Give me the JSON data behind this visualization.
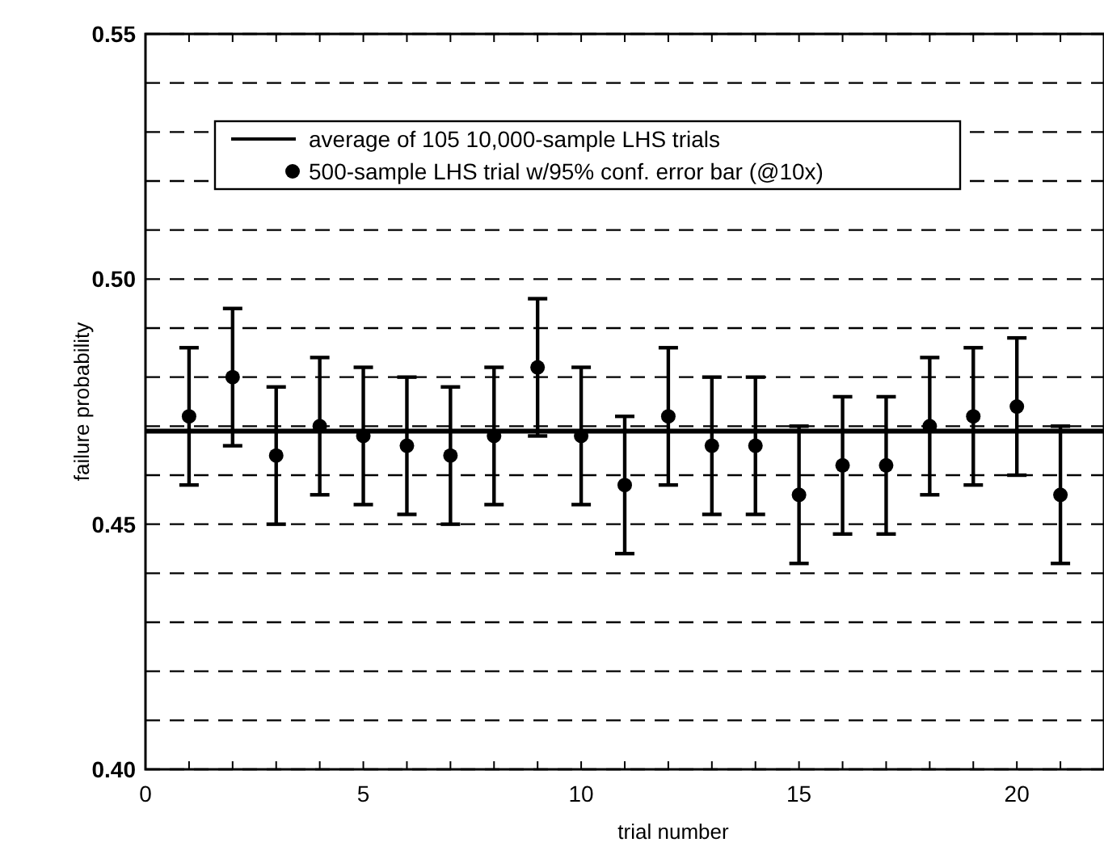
{
  "chart_data": {
    "type": "scatter",
    "xlabel": "trial number",
    "ylabel": "failure probability",
    "xlim": [
      0,
      22
    ],
    "ylim": [
      0.4,
      0.55
    ],
    "xticks": [
      0,
      {
        "value": 1,
        "label": null
      },
      {
        "value": 2,
        "label": null
      },
      {
        "value": 3,
        "label": null
      },
      {
        "value": 4,
        "label": null
      },
      5,
      {
        "value": 6,
        "label": null
      },
      {
        "value": 7,
        "label": null
      },
      {
        "value": 8,
        "label": null
      },
      {
        "value": 9,
        "label": null
      },
      10,
      {
        "value": 11,
        "label": null
      },
      {
        "value": 12,
        "label": null
      },
      {
        "value": 13,
        "label": null
      },
      {
        "value": 14,
        "label": null
      },
      15,
      {
        "value": 16,
        "label": null
      },
      {
        "value": 17,
        "label": null
      },
      {
        "value": 18,
        "label": null
      },
      {
        "value": 19,
        "label": null
      },
      20,
      {
        "value": 21,
        "label": null
      }
    ],
    "yticks": [
      {
        "value": 0.4,
        "label": "0.40"
      },
      {
        "value": 0.41,
        "label": null
      },
      {
        "value": 0.42,
        "label": null
      },
      {
        "value": 0.43,
        "label": null
      },
      {
        "value": 0.44,
        "label": null
      },
      0.45,
      {
        "value": 0.46,
        "label": null
      },
      {
        "value": 0.47,
        "label": null
      },
      {
        "value": 0.48,
        "label": null
      },
      {
        "value": 0.49,
        "label": null
      },
      {
        "value": 0.5,
        "label": "0.50"
      },
      {
        "value": 0.51,
        "label": null
      },
      {
        "value": 0.52,
        "label": null
      },
      {
        "value": 0.53,
        "label": null
      },
      {
        "value": 0.54,
        "label": null
      },
      0.55
    ],
    "grid": "y",
    "legend": "top left",
    "series": [
      {
        "type": "line",
        "name": "average of 105 10,000-sample LHS trials",
        "color": "#000000",
        "line_style": "solid",
        "marker": "none",
        "x": [
          0,
          22
        ],
        "values": [
          0.469,
          0.469
        ]
      },
      {
        "name": "500-sample LHS trial w/95% conf. error bar (@10x)",
        "color": "#000000",
        "marker": "circle",
        "x": [
          1,
          2,
          3,
          4,
          5,
          6,
          7,
          8,
          9,
          10,
          11,
          12,
          13,
          14,
          15,
          16,
          17,
          18,
          19,
          20,
          21
        ],
        "values": [
          0.472,
          0.48,
          0.464,
          0.47,
          0.468,
          0.466,
          0.464,
          0.468,
          0.482,
          0.468,
          0.458,
          0.472,
          0.466,
          0.466,
          0.456,
          0.462,
          0.462,
          0.47,
          0.472,
          0.474,
          0.456
        ],
        "errors": [
          0.014,
          0.014,
          0.014,
          0.014,
          0.014,
          0.014,
          0.014,
          0.014,
          0.014,
          0.014,
          0.014,
          0.014,
          0.014,
          0.014,
          0.014,
          0.014,
          0.014,
          0.014,
          0.014,
          0.014,
          0.014
        ]
      }
    ]
  }
}
